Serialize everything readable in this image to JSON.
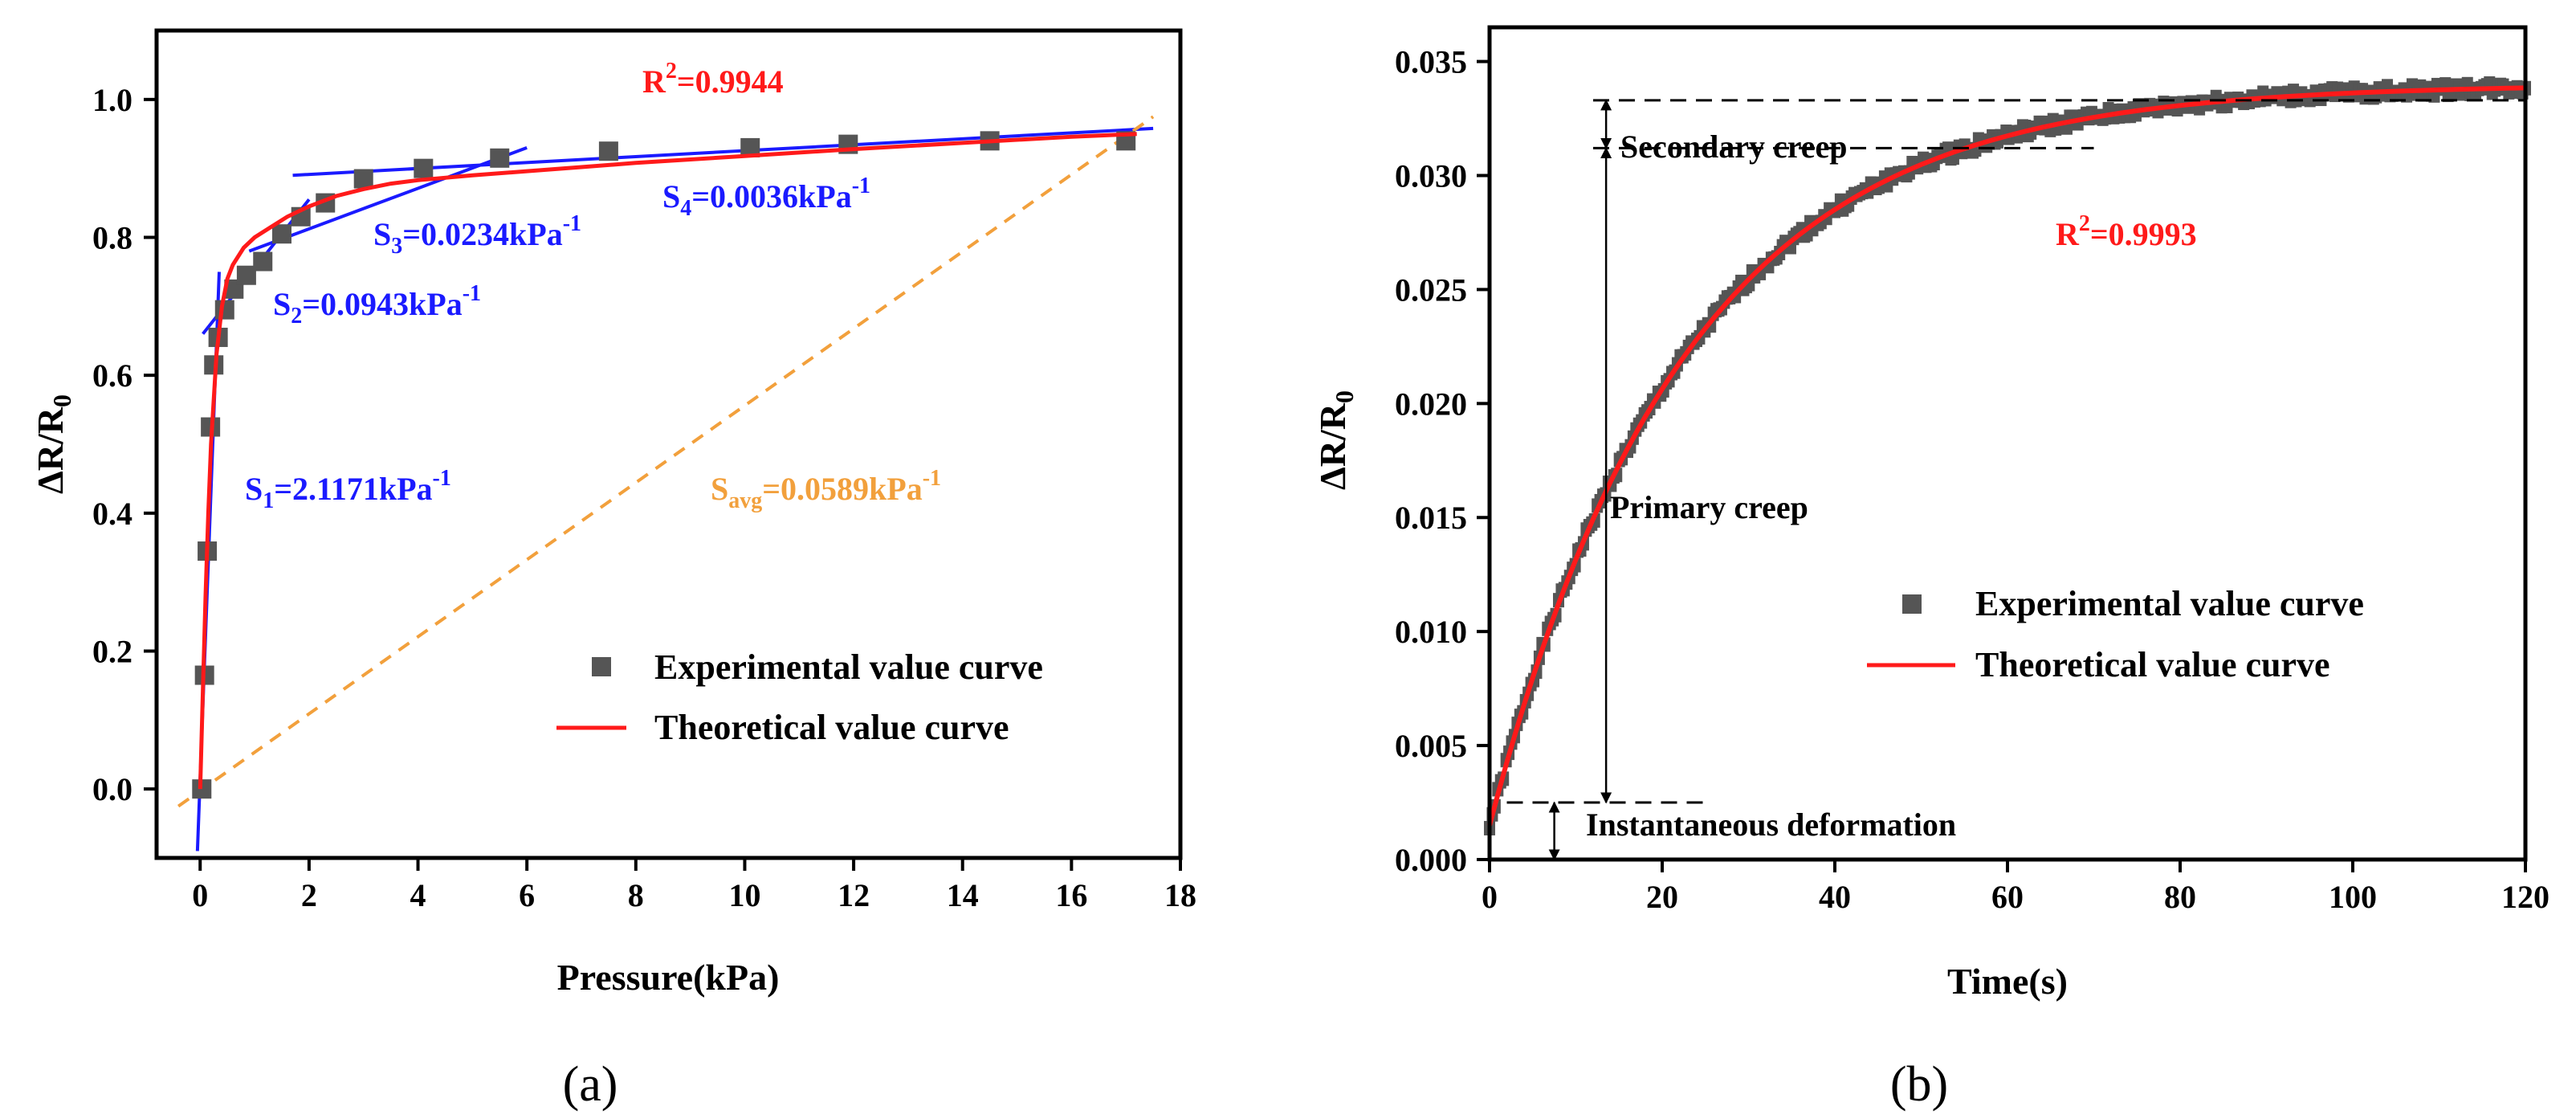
{
  "chart_data": [
    {
      "panel_label": "(a)",
      "type": "scatter",
      "xlabel": "Pressure(kPa)",
      "ylabel_main": "ΔR/R",
      "ylabel_sub": "0",
      "xlim": [
        -0.8,
        18
      ],
      "ylim": [
        -0.1,
        1.1
      ],
      "xticks": [
        0,
        2,
        4,
        6,
        8,
        10,
        12,
        14,
        16,
        18
      ],
      "yticks": [
        0.0,
        0.2,
        0.4,
        0.6,
        0.8,
        1.0
      ],
      "ytick_labels": [
        "0.0",
        "0.2",
        "0.4",
        "0.6",
        "0.8",
        "1.0"
      ],
      "series": [
        {
          "name": "Experimental value curve",
          "kind": "scatter",
          "color": "#555555",
          "x": [
            0.03,
            0.08,
            0.13,
            0.19,
            0.25,
            0.33,
            0.45,
            0.62,
            0.85,
            1.15,
            1.5,
            1.85,
            2.3,
            3.0,
            4.1,
            5.5,
            7.5,
            10.1,
            11.9,
            14.5,
            17.0
          ],
          "y": [
            0.0,
            0.165,
            0.345,
            0.525,
            0.615,
            0.655,
            0.695,
            0.725,
            0.745,
            0.765,
            0.805,
            0.83,
            0.85,
            0.885,
            0.9,
            0.915,
            0.925,
            0.93,
            0.935,
            0.94,
            0.94
          ]
        },
        {
          "name": "Theoretical value curve",
          "kind": "line",
          "color": "#ff1a1a",
          "x": [
            0.0,
            0.05,
            0.1,
            0.15,
            0.2,
            0.3,
            0.4,
            0.5,
            0.6,
            0.8,
            1.0,
            1.3,
            1.6,
            2.0,
            2.5,
            3.0,
            3.5,
            4.0,
            5.0,
            6.0,
            7.0,
            8.0,
            10.0,
            12.0,
            14.0,
            16.0,
            17.2
          ],
          "y": [
            0.0,
            0.14,
            0.28,
            0.4,
            0.5,
            0.63,
            0.7,
            0.74,
            0.76,
            0.785,
            0.8,
            0.815,
            0.83,
            0.845,
            0.86,
            0.87,
            0.878,
            0.883,
            0.89,
            0.896,
            0.902,
            0.908,
            0.918,
            0.928,
            0.937,
            0.946,
            0.95
          ]
        }
      ],
      "fit_lines": [
        {
          "label": "S1",
          "x": [
            -0.05,
            0.35
          ],
          "y": [
            -0.09,
            0.75
          ],
          "color": "#1a1aff"
        },
        {
          "label": "S2",
          "x": [
            0.05,
            2.0
          ],
          "y": [
            0.66,
            0.855
          ],
          "color": "#1a1aff"
        },
        {
          "label": "S3",
          "x": [
            0.9,
            6.0
          ],
          "y": [
            0.78,
            0.93
          ],
          "color": "#1a1aff"
        },
        {
          "label": "S4",
          "x": [
            1.7,
            17.5
          ],
          "y": [
            0.89,
            0.958
          ],
          "color": "#1a1aff"
        },
        {
          "label": "Savg",
          "x": [
            -0.4,
            17.5
          ],
          "y": [
            -0.025,
            0.975
          ],
          "color": "#f2a03c",
          "dashed": true
        }
      ],
      "annotations": {
        "r2": {
          "main": "R",
          "sup": "2",
          "rest": "=0.9944",
          "color": "#ff1a1a"
        },
        "s1": {
          "main": "S",
          "sub": "1",
          "rest": "=2.1171kPa",
          "sup": "-1",
          "color": "#1a1aff"
        },
        "s2": {
          "main": "S",
          "sub": "2",
          "rest": "=0.0943kPa",
          "sup": "-1",
          "color": "#1a1aff"
        },
        "s3": {
          "main": "S",
          "sub": "3",
          "rest": "=0.0234kPa",
          "sup": "-1",
          "color": "#1a1aff"
        },
        "s4": {
          "main": "S",
          "sub": "4",
          "rest": "=0.0036kPa",
          "sup": "-1",
          "color": "#1a1aff"
        },
        "savg": {
          "main": "S",
          "sub": "avg",
          "rest": "=0.0589kPa",
          "sup": "-1",
          "color": "#f2a03c"
        }
      },
      "legend": {
        "experimental": "Experimental value curve",
        "theoretical": "Theoretical value curve"
      }
    },
    {
      "panel_label": "(b)",
      "type": "scatter",
      "xlabel": "Time(s)",
      "ylabel_main": "ΔR/R",
      "ylabel_sub": "0",
      "xlim": [
        0,
        120
      ],
      "ylim": [
        0,
        0.0365
      ],
      "xticks": [
        0,
        20,
        40,
        60,
        80,
        100,
        120
      ],
      "yticks": [
        0.0,
        0.005,
        0.01,
        0.015,
        0.02,
        0.025,
        0.03,
        0.035
      ],
      "ytick_labels": [
        "0.000",
        "0.005",
        "0.010",
        "0.015",
        "0.020",
        "0.025",
        "0.030",
        "0.035"
      ],
      "model": {
        "y0": 0.0015,
        "A": 0.0325,
        "tau": 22.5
      },
      "series": [
        {
          "name": "Experimental value curve",
          "kind": "scatter",
          "color": "#555555",
          "t_start": 0,
          "t_end": 120
        },
        {
          "name": "Theoretical value curve",
          "kind": "line",
          "color": "#ff1a1a",
          "t_start": 0,
          "t_end": 120
        }
      ],
      "reference_lines": {
        "top": 0.0333,
        "secondary": 0.0312,
        "instantaneous": 0.0025,
        "primary_arrow_x": 13.5,
        "instant_arrow_x": 7.5
      },
      "annotations": {
        "r2": {
          "main": "R",
          "sup": "2",
          "rest": "=0.9993",
          "color": "#ff1a1a"
        },
        "secondary": "Secondary creep",
        "primary": "Primary creep",
        "instantaneous": "Instantaneous deformation"
      },
      "legend": {
        "experimental": "Experimental value curve",
        "theoretical": "Theoretical value curve"
      }
    }
  ]
}
